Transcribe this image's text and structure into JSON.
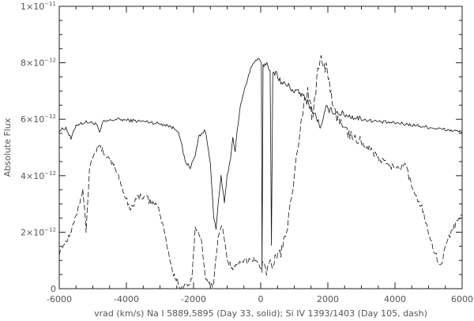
{
  "chart_data": {
    "type": "line",
    "xlabel": "vrad (km/s)   Na I 5889,5895 (Day 33, solid); Si IV 1393/1403 (Day 105, dash)",
    "ylabel": "Absolute Flux",
    "xlim": [
      -6000,
      6000
    ],
    "ylim": [
      0,
      1e-11
    ],
    "x_ticks": [
      -6000,
      -4000,
      -2000,
      0,
      2000,
      4000,
      6000
    ],
    "y_ticks": [
      {
        "value": 0,
        "label": "0",
        "exp": ""
      },
      {
        "value": 2e-12,
        "label": "2×10",
        "exp": "−12"
      },
      {
        "value": 4e-12,
        "label": "4×10",
        "exp": "−12"
      },
      {
        "value": 6e-12,
        "label": "6×10",
        "exp": "−12"
      },
      {
        "value": 8e-12,
        "label": "8×10",
        "exp": "−12"
      },
      {
        "value": 1e-11,
        "label": "1×10",
        "exp": "−11"
      }
    ],
    "grid": false,
    "legend": "none",
    "colors": {
      "line": "#111111",
      "axis": "#222222",
      "text": "#555555"
    },
    "series": [
      {
        "style": "solid",
        "points": [
          [
            -6000,
            5.6e-12
          ],
          [
            -5800,
            5.7e-12
          ],
          [
            -5650,
            5.3e-12
          ],
          [
            -5500,
            5.8e-12
          ],
          [
            -5200,
            5.9e-12
          ],
          [
            -4900,
            5.85e-12
          ],
          [
            -4800,
            5.5e-12
          ],
          [
            -4700,
            5.9e-12
          ],
          [
            -4300,
            6e-12
          ],
          [
            -3800,
            5.95e-12
          ],
          [
            -3300,
            5.9e-12
          ],
          [
            -2800,
            5.8e-12
          ],
          [
            -2450,
            5.6e-12
          ],
          [
            -2250,
            4.5e-12
          ],
          [
            -2100,
            4.3e-12
          ],
          [
            -1950,
            4.7e-12
          ],
          [
            -1850,
            5.4e-12
          ],
          [
            -1650,
            5.6e-12
          ],
          [
            -1500,
            4.5e-12
          ],
          [
            -1400,
            2.5e-12
          ],
          [
            -1330,
            2.1e-12
          ],
          [
            -1250,
            3.2e-12
          ],
          [
            -1180,
            4e-12
          ],
          [
            -1080,
            3e-12
          ],
          [
            -1000,
            4e-12
          ],
          [
            -900,
            4.6e-12
          ],
          [
            -830,
            5.4e-12
          ],
          [
            -760,
            4.8e-12
          ],
          [
            -700,
            5.6e-12
          ],
          [
            -600,
            6.5e-12
          ],
          [
            -450,
            7.2e-12
          ],
          [
            -300,
            7.8e-12
          ],
          [
            -150,
            8.1e-12
          ],
          [
            -50,
            8.1e-12
          ],
          [
            20,
            8e-12
          ],
          [
            40,
            5e-13
          ],
          [
            70,
            7.9e-12
          ],
          [
            150,
            8e-12
          ],
          [
            280,
            7.8e-12
          ],
          [
            320,
            1.5e-12
          ],
          [
            360,
            7.6e-12
          ],
          [
            450,
            7.7e-12
          ],
          [
            600,
            7.3e-12
          ],
          [
            800,
            7.2e-12
          ],
          [
            1000,
            7e-12
          ],
          [
            1200,
            6.9e-12
          ],
          [
            1400,
            6.6e-12
          ],
          [
            1600,
            6.2e-12
          ],
          [
            1800,
            5.7e-12
          ],
          [
            1950,
            6.4e-12
          ],
          [
            2100,
            6.3e-12
          ],
          [
            2400,
            6.2e-12
          ],
          [
            3000,
            6e-12
          ],
          [
            3600,
            5.9e-12
          ],
          [
            4200,
            5.85e-12
          ],
          [
            4800,
            5.75e-12
          ],
          [
            5400,
            5.65e-12
          ],
          [
            6000,
            5.55e-12
          ]
        ]
      },
      {
        "style": "dash",
        "points": [
          [
            -6000,
            1.3e-12
          ],
          [
            -5900,
            1.5e-12
          ],
          [
            -5700,
            1.9e-12
          ],
          [
            -5500,
            2.6e-12
          ],
          [
            -5300,
            3.5e-12
          ],
          [
            -5200,
            2.1e-12
          ],
          [
            -5100,
            4.2e-12
          ],
          [
            -4950,
            4.9e-12
          ],
          [
            -4800,
            5e-12
          ],
          [
            -4650,
            4.8e-12
          ],
          [
            -4500,
            4.6e-12
          ],
          [
            -4300,
            4.2e-12
          ],
          [
            -4100,
            3.5e-12
          ],
          [
            -3900,
            2.8e-12
          ],
          [
            -3700,
            3.2e-12
          ],
          [
            -3500,
            3.3e-12
          ],
          [
            -3300,
            3.1e-12
          ],
          [
            -3100,
            3e-12
          ],
          [
            -2900,
            2.2e-12
          ],
          [
            -2750,
            1.3e-12
          ],
          [
            -2600,
            5e-13
          ],
          [
            -2400,
            1e-13
          ],
          [
            -2200,
            1e-13
          ],
          [
            -2050,
            3e-13
          ],
          [
            -1950,
            2.1e-12
          ],
          [
            -1850,
            2e-12
          ],
          [
            -1750,
            1.6e-12
          ],
          [
            -1650,
            5e-13
          ],
          [
            -1500,
            1e-13
          ],
          [
            -1400,
            2e-13
          ],
          [
            -1300,
            1.5e-12
          ],
          [
            -1200,
            2.2e-12
          ],
          [
            -1100,
            2e-12
          ],
          [
            -1000,
            1e-12
          ],
          [
            -800,
            7e-13
          ],
          [
            -600,
            9e-13
          ],
          [
            -400,
            1e-12
          ],
          [
            -200,
            1.1e-12
          ],
          [
            0,
            8e-13
          ],
          [
            200,
            7e-13
          ],
          [
            400,
            1e-12
          ],
          [
            600,
            1.3e-12
          ],
          [
            800,
            2.2e-12
          ],
          [
            1000,
            3.8e-12
          ],
          [
            1200,
            6e-12
          ],
          [
            1400,
            7e-12
          ],
          [
            1550,
            6e-12
          ],
          [
            1700,
            7.8e-12
          ],
          [
            1800,
            8.3e-12
          ],
          [
            1950,
            7.8e-12
          ],
          [
            2100,
            6.8e-12
          ],
          [
            2300,
            6e-12
          ],
          [
            2600,
            5.5e-12
          ],
          [
            2900,
            5.3e-12
          ],
          [
            3200,
            5e-12
          ],
          [
            3500,
            4.6e-12
          ],
          [
            3800,
            4.4e-12
          ],
          [
            4100,
            4.2e-12
          ],
          [
            4300,
            4.4e-12
          ],
          [
            4500,
            3.6e-12
          ],
          [
            4800,
            2.9e-12
          ],
          [
            5000,
            2e-12
          ],
          [
            5200,
            1.2e-12
          ],
          [
            5400,
            8e-13
          ],
          [
            5500,
            1.5e-12
          ],
          [
            5700,
            2.1e-12
          ],
          [
            5900,
            2.5e-12
          ],
          [
            6000,
            2.6e-12
          ]
        ]
      }
    ]
  }
}
